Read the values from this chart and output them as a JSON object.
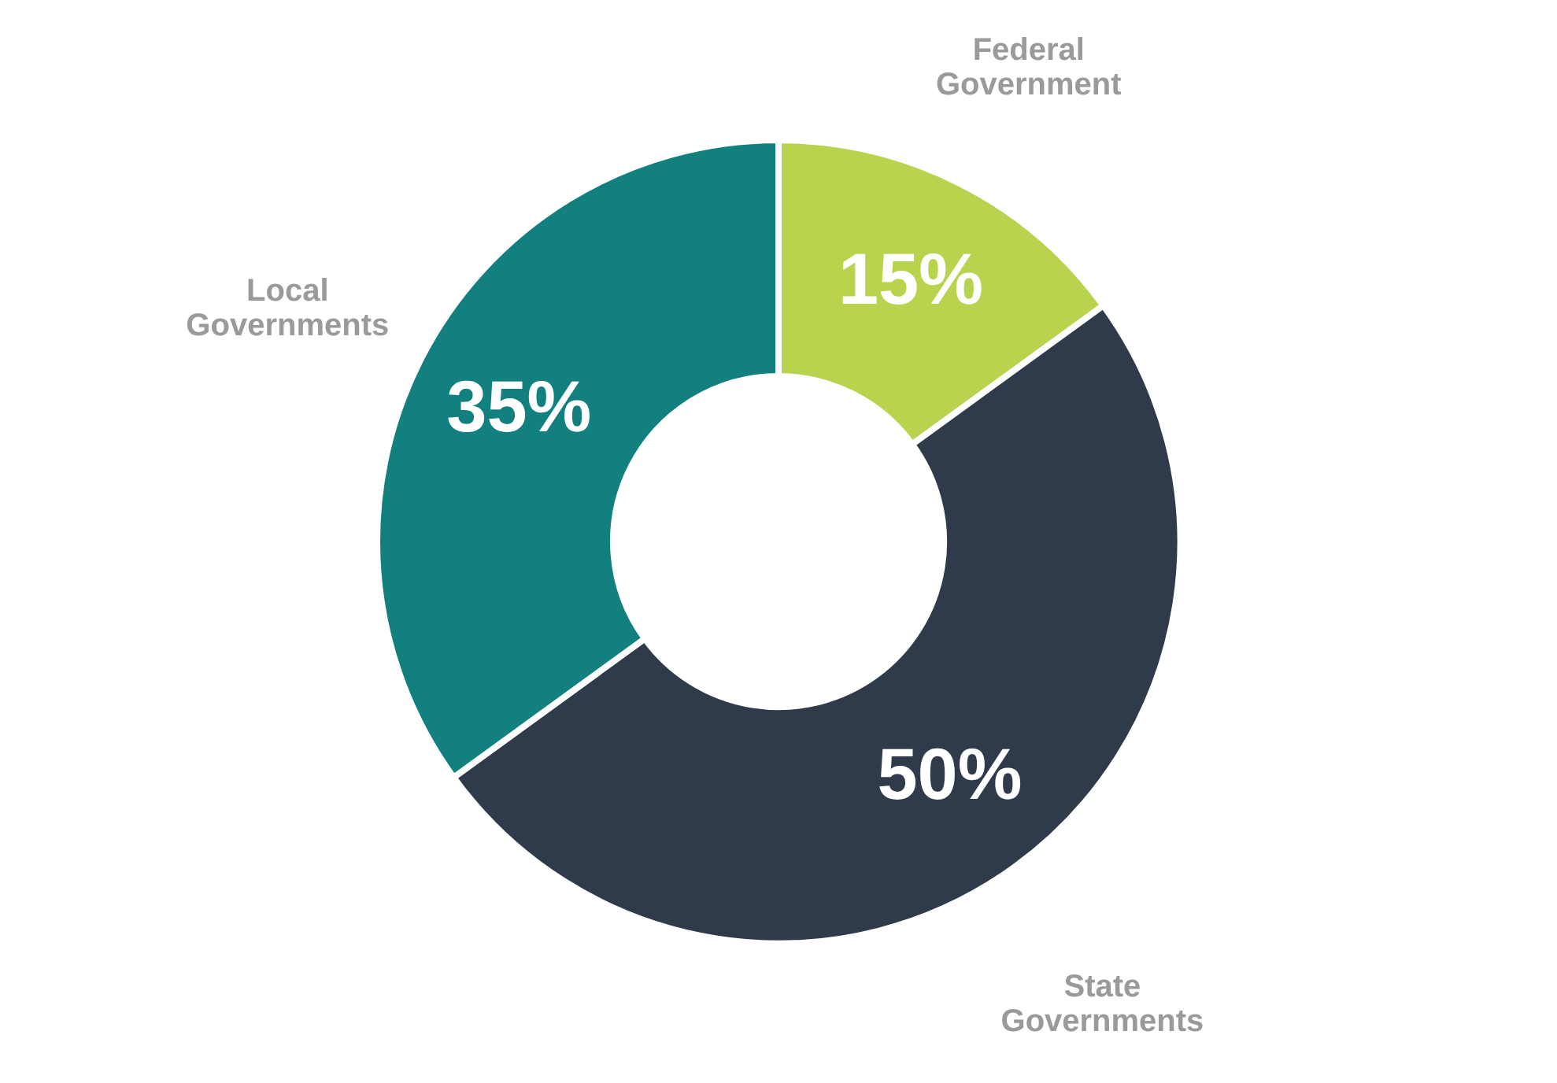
{
  "chart_data": {
    "type": "donut",
    "categories": [
      "Federal Government",
      "State Governments",
      "Local Governments"
    ],
    "values": [
      15,
      50,
      35
    ],
    "colors": [
      "#b8d44e",
      "#2f3a4b",
      "#12807f"
    ],
    "value_labels": [
      "15%",
      "50%",
      "35%"
    ]
  }
}
